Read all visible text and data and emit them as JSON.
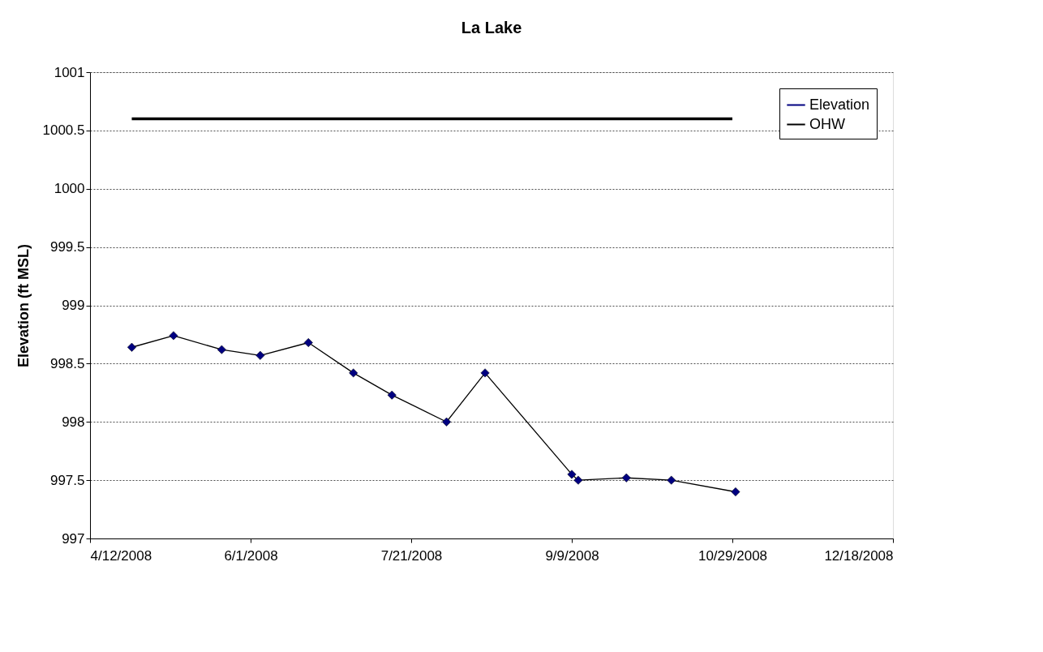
{
  "chart_data": {
    "type": "line",
    "title": "La Lake",
    "ylabel": "Elevation (ft MSL)",
    "xlim": [
      "2008-04-12",
      "2008-12-18"
    ],
    "xticks": [
      {
        "value": "2008-04-12",
        "label": "4/12/2008"
      },
      {
        "value": "2008-06-01",
        "label": "6/1/2008"
      },
      {
        "value": "2008-07-21",
        "label": "7/21/2008"
      },
      {
        "value": "2008-09-09",
        "label": "9/9/2008"
      },
      {
        "value": "2008-10-29",
        "label": "10/29/2008"
      },
      {
        "value": "2008-12-18",
        "label": "12/18/2008"
      }
    ],
    "ylim": [
      997,
      1001
    ],
    "yticks": [
      997,
      997.5,
      998,
      998.5,
      999,
      999.5,
      1000,
      1000.5,
      1001
    ],
    "grid": "y",
    "legend": "top right",
    "series": [
      {
        "name": "Elevation",
        "color": "#000080",
        "marker": "diamond",
        "x": [
          "2008-04-25",
          "2008-05-08",
          "2008-05-23",
          "2008-06-04",
          "2008-06-19",
          "2008-07-03",
          "2008-07-15",
          "2008-08-01",
          "2008-08-13",
          "2008-09-09",
          "2008-09-11",
          "2008-09-26",
          "2008-10-10",
          "2008-10-30"
        ],
        "values": [
          998.64,
          998.74,
          998.62,
          998.57,
          998.68,
          998.42,
          998.23,
          998.0,
          998.42,
          997.55,
          997.5,
          997.52,
          997.5,
          997.4
        ]
      },
      {
        "name": "OHW",
        "color": "#000000",
        "marker": "none",
        "x": [
          "2008-04-25",
          "2008-10-29"
        ],
        "values": [
          1000.6,
          1000.6
        ]
      }
    ]
  }
}
